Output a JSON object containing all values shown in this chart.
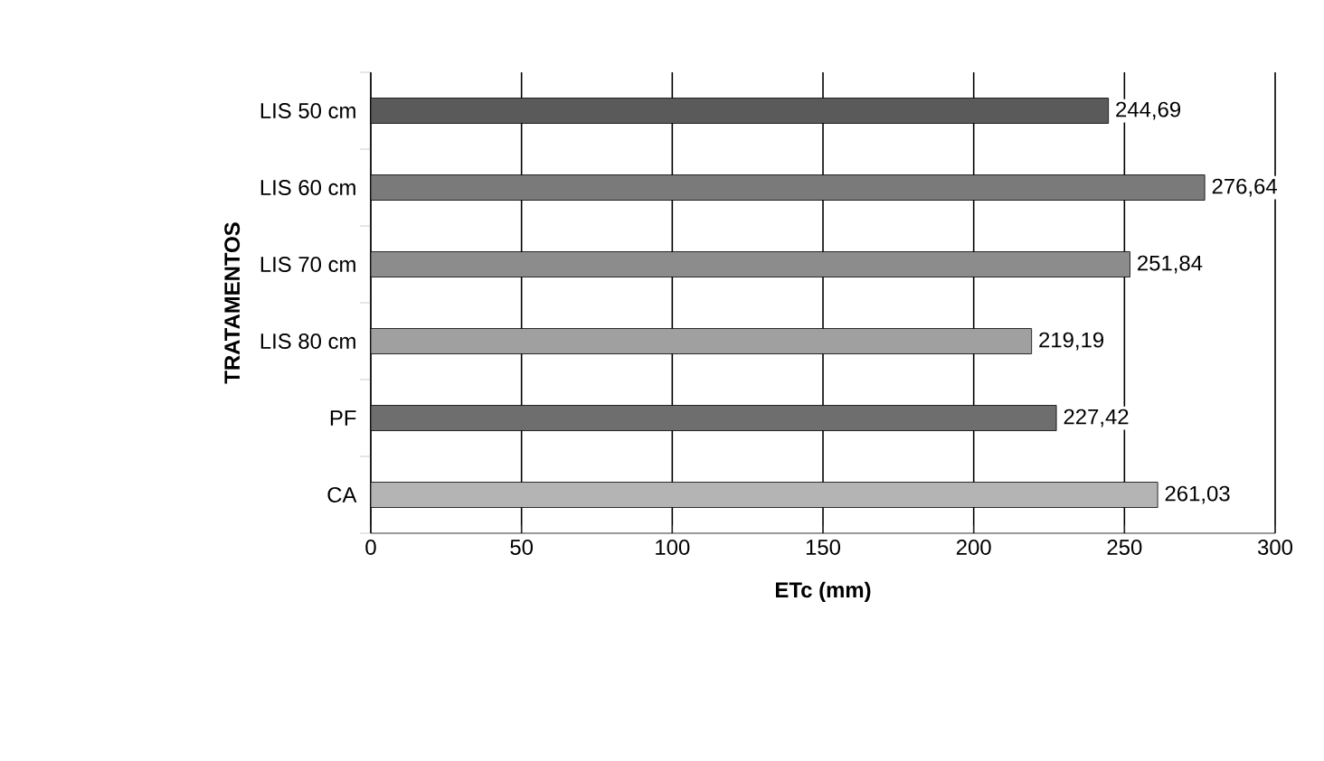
{
  "chart_data": {
    "type": "bar",
    "orientation": "horizontal",
    "xlabel": "ETc (mm)",
    "ylabel": "TRATAMENTOS",
    "categories": [
      "LIS 50 cm",
      "LIS 60 cm",
      "LIS 70 cm",
      "LIS 80 cm",
      "PF",
      "CA"
    ],
    "values": [
      244.69,
      276.64,
      251.84,
      219.19,
      227.42,
      261.03
    ],
    "value_labels": [
      "244,69",
      "276,64",
      "251,84",
      "219,19",
      "227,42",
      "261,03"
    ],
    "colors": [
      "#5a5a5a",
      "#7a7a7a",
      "#8c8c8c",
      "#a0a0a0",
      "#6e6e6e",
      "#b4b4b4"
    ],
    "xlim": [
      0,
      300
    ],
    "xticks": [
      0,
      50,
      100,
      150,
      200,
      250,
      300
    ],
    "grid": "x"
  }
}
